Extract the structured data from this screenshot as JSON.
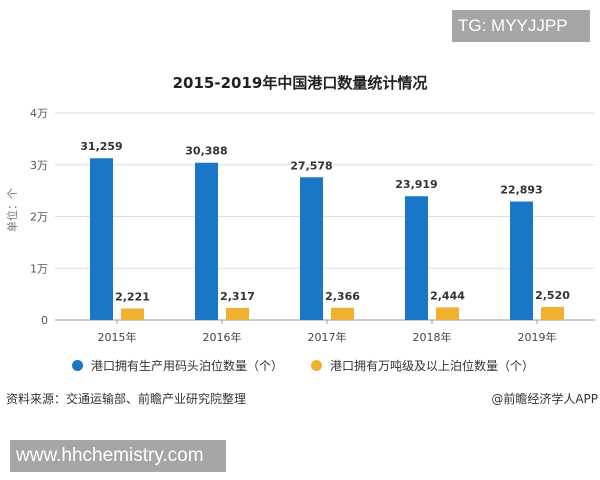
{
  "watermarks": {
    "top_right": "TG: MYYJJPP",
    "bottom_left": "www.hhchemistry.com"
  },
  "source": "资料来源：交通运输部、前瞻产业研究院整理",
  "credit": "@前瞻经济学人APP",
  "chart_data": {
    "type": "bar",
    "title": "2015-2019年中国港口数量统计情况",
    "ylabel": "单位：个",
    "ylim": [
      0,
      40000
    ],
    "yticks": [
      {
        "v": 0,
        "label": "0"
      },
      {
        "v": 10000,
        "label": "1万"
      },
      {
        "v": 20000,
        "label": "2万"
      },
      {
        "v": 30000,
        "label": "3万"
      },
      {
        "v": 40000,
        "label": "4万"
      }
    ],
    "grid": true,
    "legend": "bottom",
    "categories": [
      "2015年",
      "2016年",
      "2017年",
      "2018年",
      "2019年"
    ],
    "series": [
      {
        "name": "港口拥有生产用码头泊位数量（个）",
        "color": "#1a76c6",
        "values": [
          31259,
          30388,
          27578,
          23919,
          22893
        ],
        "labels": [
          "31,259",
          "30,388",
          "27,578",
          "23,919",
          "22,893"
        ]
      },
      {
        "name": "港口拥有万吨级及以上泊位数量（个）",
        "color": "#f0b030",
        "values": [
          2221,
          2317,
          2366,
          2444,
          2520
        ],
        "labels": [
          "2,221",
          "2,317",
          "2,366",
          "2,444",
          "2,520"
        ]
      }
    ]
  }
}
